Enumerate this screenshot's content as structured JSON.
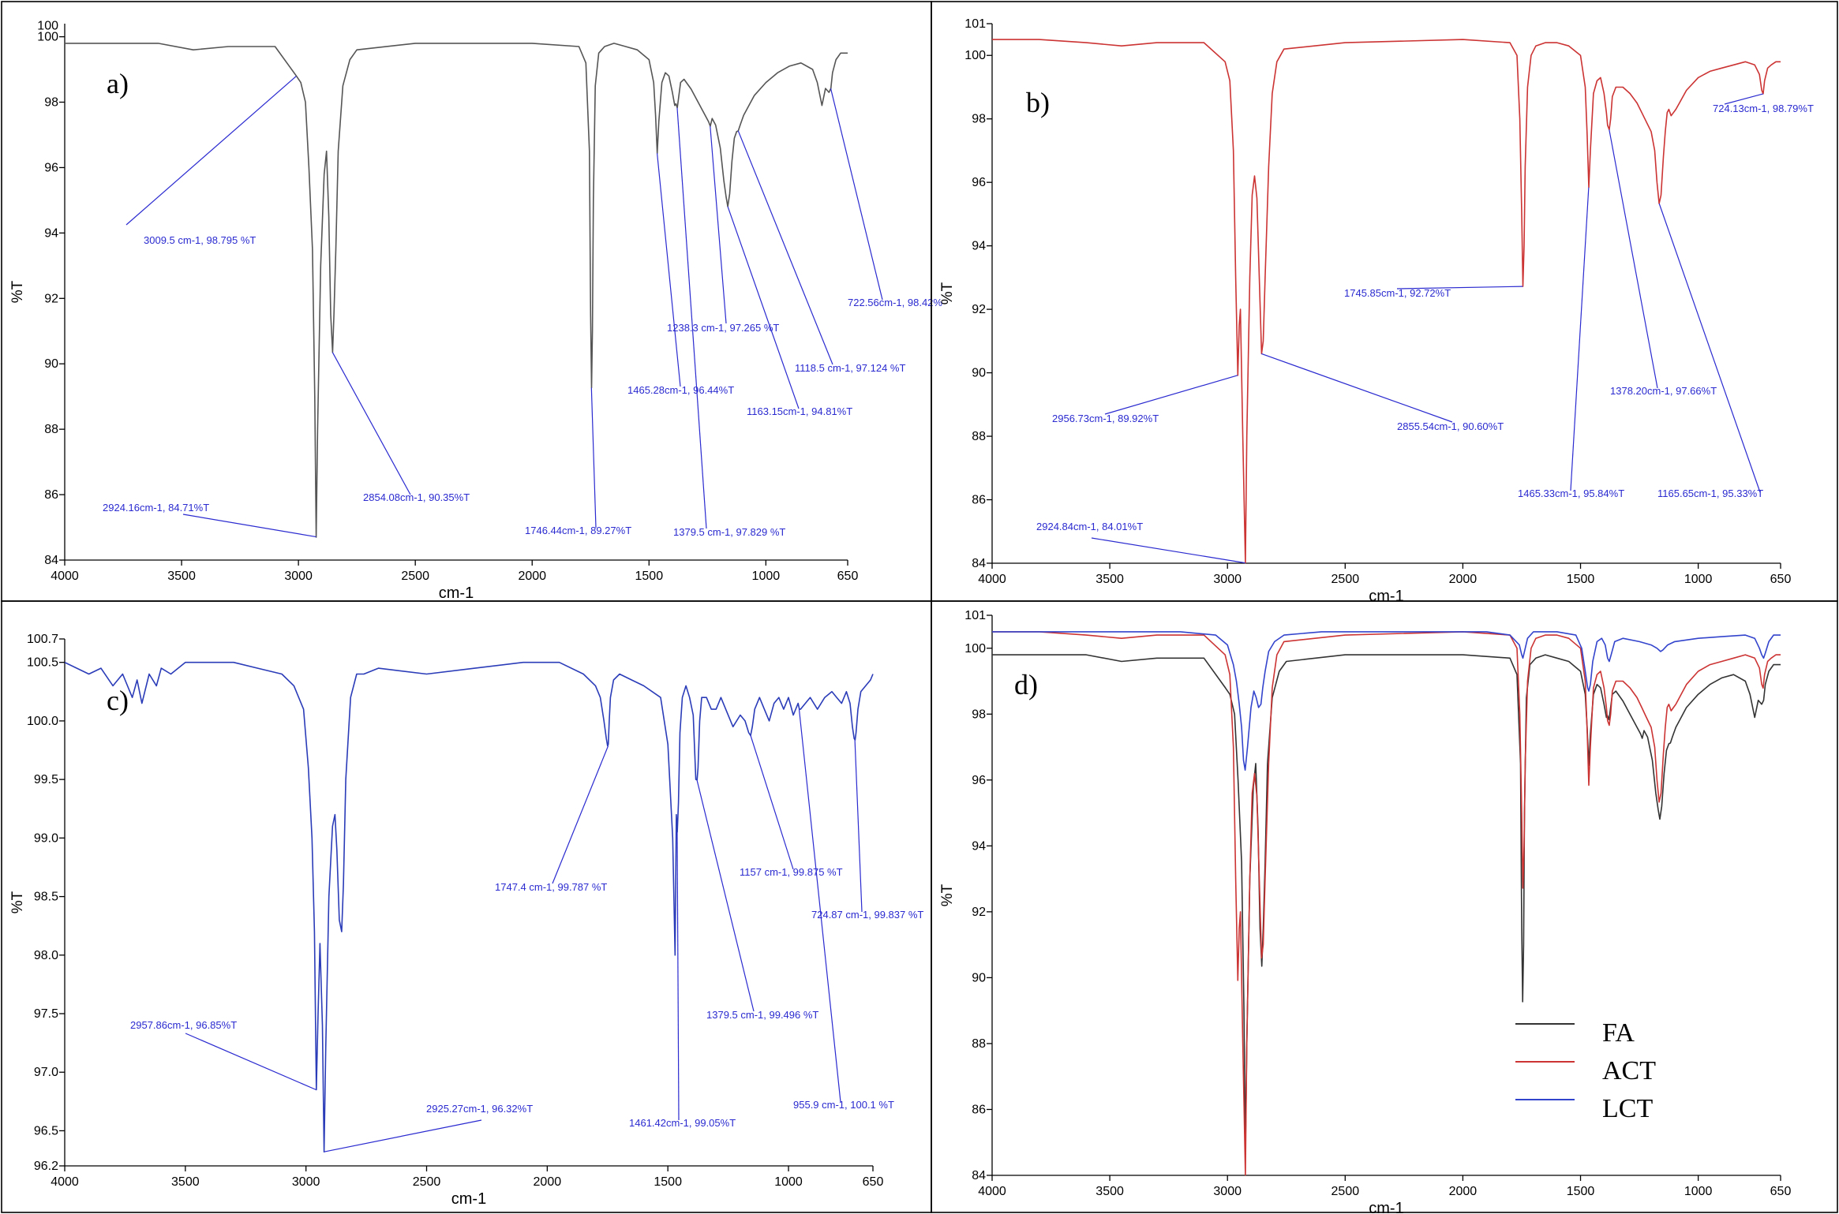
{
  "chart_data": [
    {
      "id": "a",
      "panel_label": "a)",
      "type": "line",
      "xlabel": "cm-1",
      "ylabel": "%T",
      "xlim": [
        4000,
        650
      ],
      "ylim": [
        84,
        100.4
      ],
      "x_ticks": [
        "4000",
        "3500",
        "3000",
        "2500",
        "2000",
        "1500",
        "1000",
        "650"
      ],
      "y_ticks": [
        "84",
        "86",
        "88",
        "90",
        "92",
        "94",
        "96",
        "98",
        "100"
      ],
      "y_ticks_extra": [
        "100"
      ],
      "series": [
        {
          "name": "FA",
          "color": "#555555",
          "x": [
            4000,
            3800,
            3600,
            3450,
            3300,
            3100,
            3009,
            2990,
            2970,
            2955,
            2940,
            2930,
            2924,
            2918,
            2905,
            2890,
            2880,
            2870,
            2862,
            2854,
            2848,
            2840,
            2830,
            2810,
            2780,
            2750,
            2500,
            2000,
            1800,
            1770,
            1755,
            1750,
            1746,
            1742,
            1738,
            1730,
            1715,
            1690,
            1650,
            1600,
            1550,
            1500,
            1480,
            1472,
            1465,
            1458,
            1445,
            1430,
            1415,
            1400,
            1390,
            1385,
            1379,
            1374,
            1365,
            1350,
            1320,
            1290,
            1260,
            1245,
            1238,
            1230,
            1215,
            1195,
            1180,
            1170,
            1163,
            1155,
            1145,
            1135,
            1125,
            1118,
            1110,
            1095,
            1080,
            1050,
            1000,
            950,
            900,
            850,
            800,
            780,
            760,
            745,
            730,
            722,
            715,
            700,
            680,
            660,
            650
          ],
          "y": [
            99.8,
            99.8,
            99.8,
            99.6,
            99.7,
            99.7,
            98.8,
            98.6,
            98.0,
            96.0,
            93.5,
            89.0,
            84.7,
            88.0,
            93.0,
            95.8,
            96.5,
            94.5,
            91.5,
            90.35,
            91.5,
            93.5,
            96.5,
            98.5,
            99.3,
            99.6,
            99.8,
            99.8,
            99.7,
            99.2,
            96.5,
            91.5,
            89.27,
            91.0,
            95.0,
            98.5,
            99.5,
            99.7,
            99.8,
            99.7,
            99.6,
            99.3,
            98.6,
            97.6,
            96.44,
            97.4,
            98.6,
            98.9,
            98.8,
            98.3,
            97.9,
            97.95,
            97.83,
            98.1,
            98.6,
            98.7,
            98.4,
            98.0,
            97.6,
            97.4,
            97.265,
            97.5,
            97.3,
            96.6,
            95.6,
            95.1,
            94.81,
            95.2,
            96.2,
            96.9,
            97.1,
            97.124,
            97.3,
            97.6,
            97.8,
            98.2,
            98.6,
            98.9,
            99.1,
            99.2,
            99.0,
            98.6,
            97.9,
            98.42,
            98.3,
            98.42,
            98.9,
            99.3,
            99.5,
            99.5,
            99.5
          ]
        }
      ],
      "annotations": [
        {
          "text": "3009.5 cm-1, 98.795 %T",
          "x": 3009.5,
          "y": 98.795
        },
        {
          "text": "722.56cm-1, 98.42%",
          "x": 722.56,
          "y": 98.42
        },
        {
          "text": "1238.3 cm-1, 97.265 %T",
          "x": 1238.3,
          "y": 97.265
        },
        {
          "text": "1118.5 cm-1, 97.124 %T",
          "x": 1118.5,
          "y": 97.124
        },
        {
          "text": "1465.28cm-1, 96.44%T",
          "x": 1465.28,
          "y": 96.44
        },
        {
          "text": "1163.15cm-1, 94.81%T",
          "x": 1163.15,
          "y": 94.81
        },
        {
          "text": "2854.08cm-1, 90.35%T",
          "x": 2854.08,
          "y": 90.35
        },
        {
          "text": "2924.16cm-1, 84.71%T",
          "x": 2924.16,
          "y": 84.71
        },
        {
          "text": "1746.44cm-1, 89.27%T",
          "x": 1746.44,
          "y": 89.27
        },
        {
          "text": "1379.5 cm-1, 97.829 %T",
          "x": 1379.5,
          "y": 97.829
        }
      ]
    },
    {
      "id": "b",
      "panel_label": "b)",
      "type": "line",
      "xlabel": "cm-1",
      "ylabel": "%T",
      "xlim": [
        4000,
        650
      ],
      "ylim": [
        84,
        101
      ],
      "x_ticks": [
        "4000",
        "3500",
        "3000",
        "2500",
        "2000",
        "1500",
        "1000",
        "650"
      ],
      "y_ticks": [
        "84",
        "86",
        "88",
        "90",
        "92",
        "94",
        "96",
        "98",
        "100",
        "101"
      ],
      "series": [
        {
          "name": "ACT",
          "color": "#cc3333",
          "x": [
            4000,
            3800,
            3600,
            3450,
            3300,
            3100,
            3010,
            2990,
            2975,
            2965,
            2956,
            2950,
            2945,
            2935,
            2924,
            2918,
            2905,
            2895,
            2885,
            2875,
            2865,
            2855,
            2848,
            2840,
            2825,
            2810,
            2790,
            2760,
            2500,
            2000,
            1800,
            1770,
            1758,
            1750,
            1745,
            1740,
            1735,
            1725,
            1710,
            1690,
            1650,
            1600,
            1550,
            1500,
            1480,
            1472,
            1465,
            1458,
            1445,
            1430,
            1415,
            1400,
            1390,
            1385,
            1378,
            1372,
            1365,
            1350,
            1320,
            1290,
            1260,
            1240,
            1220,
            1200,
            1185,
            1175,
            1166,
            1158,
            1148,
            1140,
            1132,
            1125,
            1115,
            1105,
            1095,
            1080,
            1050,
            1000,
            950,
            900,
            850,
            800,
            760,
            740,
            730,
            724,
            718,
            705,
            690,
            670,
            650
          ],
          "y": [
            100.5,
            100.5,
            100.4,
            100.3,
            100.4,
            100.4,
            99.8,
            99.2,
            97.0,
            93.0,
            89.92,
            91.5,
            92.0,
            88.0,
            84.01,
            88.0,
            93.0,
            95.6,
            96.2,
            95.5,
            93.0,
            90.6,
            91.0,
            93.0,
            96.5,
            98.8,
            99.8,
            100.2,
            100.4,
            100.5,
            100.4,
            100.0,
            98.0,
            95.0,
            92.72,
            94.0,
            96.5,
            99.0,
            100.0,
            100.3,
            100.4,
            100.4,
            100.3,
            100.0,
            99.0,
            97.5,
            95.84,
            97.0,
            98.8,
            99.2,
            99.3,
            98.8,
            98.2,
            97.8,
            97.66,
            98.0,
            98.7,
            99.0,
            99.0,
            98.8,
            98.5,
            98.2,
            97.9,
            97.6,
            97.0,
            96.0,
            95.33,
            95.6,
            96.8,
            97.6,
            98.2,
            98.3,
            98.1,
            98.2,
            98.3,
            98.5,
            98.9,
            99.3,
            99.5,
            99.6,
            99.7,
            99.8,
            99.7,
            99.4,
            98.9,
            98.79,
            99.2,
            99.6,
            99.7,
            99.8,
            99.8
          ]
        }
      ],
      "annotations": [
        {
          "text": "724.13cm-1, 98.79%T",
          "x": 724.13,
          "y": 98.79
        },
        {
          "text": "1745.85cm-1, 92.72%T",
          "x": 1745.85,
          "y": 92.72
        },
        {
          "text": "1378.20cm-1, 97.66%T",
          "x": 1378.2,
          "y": 97.66
        },
        {
          "text": "2956.73cm-1, 89.92%T",
          "x": 2956.73,
          "y": 89.92
        },
        {
          "text": "2855.54cm-1, 90.60%T",
          "x": 2855.54,
          "y": 90.6
        },
        {
          "text": "1465.33cm-1, 95.84%T",
          "x": 1465.33,
          "y": 95.84
        },
        {
          "text": "1165.65cm-1, 95.33%T",
          "x": 1165.65,
          "y": 95.33
        },
        {
          "text": "2924.84cm-1, 84.01%T",
          "x": 2924.84,
          "y": 84.01
        }
      ]
    },
    {
      "id": "c",
      "panel_label": "c)",
      "type": "line",
      "xlabel": "cm-1",
      "ylabel": "%T",
      "xlim": [
        4000,
        650
      ],
      "ylim": [
        96.2,
        100.7
      ],
      "x_ticks": [
        "4000",
        "3500",
        "3000",
        "2500",
        "2000",
        "1500",
        "1000",
        "650"
      ],
      "y_ticks": [
        "96.2",
        "96.5",
        "97.0",
        "97.5",
        "98.0",
        "98.5",
        "99.0",
        "99.5",
        "100.0",
        "100.5",
        "100.7"
      ],
      "series": [
        {
          "name": "LCT",
          "color": "#2b3cb8",
          "x": [
            4000,
            3900,
            3850,
            3800,
            3760,
            3720,
            3700,
            3680,
            3650,
            3620,
            3600,
            3560,
            3500,
            3400,
            3300,
            3200,
            3100,
            3050,
            3010,
            2990,
            2975,
            2965,
            2957,
            2950,
            2942,
            2932,
            2925,
            2918,
            2905,
            2890,
            2880,
            2872,
            2862,
            2852,
            2845,
            2835,
            2815,
            2790,
            2760,
            2700,
            2500,
            2300,
            2100,
            1950,
            1850,
            1800,
            1780,
            1765,
            1755,
            1750,
            1747,
            1743,
            1738,
            1725,
            1700,
            1650,
            1600,
            1530,
            1500,
            1480,
            1470,
            1465,
            1461,
            1456,
            1450,
            1440,
            1425,
            1410,
            1395,
            1388,
            1384,
            1379,
            1375,
            1368,
            1360,
            1340,
            1320,
            1300,
            1280,
            1260,
            1230,
            1200,
            1180,
            1165,
            1157,
            1150,
            1140,
            1120,
            1100,
            1080,
            1060,
            1040,
            1020,
            1000,
            980,
            960,
            955,
            950,
            930,
            910,
            880,
            850,
            820,
            800,
            780,
            760,
            745,
            735,
            728,
            724,
            720,
            712,
            700,
            680,
            660,
            650
          ],
          "y": [
            100.5,
            100.4,
            100.45,
            100.3,
            100.4,
            100.2,
            100.35,
            100.15,
            100.4,
            100.3,
            100.45,
            100.4,
            100.5,
            100.5,
            100.5,
            100.45,
            100.4,
            100.3,
            100.1,
            99.6,
            99.0,
            98.2,
            96.85,
            97.5,
            98.1,
            97.4,
            96.32,
            97.2,
            98.5,
            99.1,
            99.2,
            98.9,
            98.3,
            98.2,
            98.6,
            99.5,
            100.2,
            100.4,
            100.4,
            100.45,
            100.4,
            100.45,
            100.5,
            100.5,
            100.4,
            100.3,
            100.2,
            100.0,
            99.85,
            99.787,
            99.8,
            100.0,
            100.2,
            100.35,
            100.4,
            100.35,
            100.3,
            100.2,
            99.8,
            99.0,
            98.0,
            99.2,
            99.05,
            99.3,
            99.9,
            100.2,
            100.3,
            100.2,
            100.05,
            99.7,
            99.5,
            99.496,
            99.6,
            100.0,
            100.2,
            100.2,
            100.1,
            100.1,
            100.2,
            100.1,
            99.95,
            100.05,
            100.0,
            99.9,
            99.875,
            99.95,
            100.1,
            100.2,
            100.1,
            100.0,
            100.15,
            100.2,
            100.1,
            100.2,
            100.05,
            100.15,
            100.1,
            100.1,
            100.15,
            100.2,
            100.1,
            100.2,
            100.25,
            100.2,
            100.15,
            100.25,
            100.15,
            99.95,
            99.85,
            99.837,
            99.9,
            100.1,
            100.25,
            100.3,
            100.35,
            100.4
          ]
        }
      ],
      "annotations": [
        {
          "text": "1747.4 cm-1, 99.787 %T",
          "x": 1747.4,
          "y": 99.787
        },
        {
          "text": "1157 cm-1, 99.875 %T",
          "x": 1157,
          "y": 99.875
        },
        {
          "text": "724.87 cm-1, 99.837 %T",
          "x": 724.87,
          "y": 99.837
        },
        {
          "text": "1379.5 cm-1, 99.496 %T",
          "x": 1379.5,
          "y": 99.496
        },
        {
          "text": "2957.86cm-1, 96.85%T",
          "x": 2957.86,
          "y": 96.85
        },
        {
          "text": "2925.27cm-1, 96.32%T",
          "x": 2925.27,
          "y": 96.32
        },
        {
          "text": "1461.42cm-1, 99.05%T",
          "x": 1461.42,
          "y": 99.05
        },
        {
          "text": "955.9 cm-1, 100.1 %T",
          "x": 955.9,
          "y": 100.1
        }
      ]
    },
    {
      "id": "d",
      "panel_label": "d)",
      "type": "line",
      "xlabel": "cm-1",
      "ylabel": "%T",
      "xlim": [
        4000,
        650
      ],
      "ylim": [
        84,
        101
      ],
      "x_ticks": [
        "4000",
        "3500",
        "3000",
        "2500",
        "2000",
        "1500",
        "1000",
        "650"
      ],
      "y_ticks": [
        "84",
        "86",
        "88",
        "90",
        "92",
        "94",
        "96",
        "98",
        "100",
        "101"
      ],
      "legend": [
        "FA",
        "ACT",
        "LCT"
      ],
      "series": [
        {
          "name": "FA",
          "color": "#333333",
          "ref": "a"
        },
        {
          "name": "ACT",
          "color": "#cc3333",
          "ref": "b"
        },
        {
          "name": "LCT",
          "color": "#3344cc",
          "ref": "c_scaled",
          "x": [
            4000,
            3800,
            3600,
            3400,
            3200,
            3050,
            3000,
            2975,
            2962,
            2955,
            2950,
            2940,
            2932,
            2925,
            2915,
            2900,
            2888,
            2878,
            2868,
            2858,
            2850,
            2840,
            2825,
            2800,
            2760,
            2600,
            2200,
            1900,
            1800,
            1760,
            1750,
            1745,
            1738,
            1725,
            1700,
            1600,
            1520,
            1495,
            1480,
            1470,
            1465,
            1458,
            1448,
            1430,
            1410,
            1395,
            1385,
            1378,
            1370,
            1355,
            1320,
            1250,
            1200,
            1175,
            1160,
            1150,
            1130,
            1100,
            1000,
            900,
            800,
            760,
            740,
            730,
            722,
            715,
            700,
            680,
            650
          ],
          "y": [
            100.5,
            100.5,
            100.5,
            100.5,
            100.5,
            100.4,
            100.1,
            99.5,
            99.0,
            98.6,
            98.3,
            97.6,
            96.6,
            96.3,
            97.0,
            98.2,
            98.7,
            98.5,
            98.2,
            98.3,
            98.8,
            99.3,
            99.9,
            100.2,
            100.4,
            100.5,
            100.5,
            100.5,
            100.4,
            100.1,
            99.8,
            99.7,
            99.9,
            100.3,
            100.5,
            100.5,
            100.4,
            100.0,
            99.3,
            98.8,
            98.7,
            98.9,
            99.6,
            100.2,
            100.3,
            100.1,
            99.7,
            99.6,
            99.8,
            100.2,
            100.3,
            100.2,
            100.1,
            100.0,
            99.9,
            99.95,
            100.1,
            100.2,
            100.3,
            100.35,
            100.4,
            100.3,
            100.0,
            99.8,
            99.7,
            99.85,
            100.2,
            100.4,
            100.4
          ]
        }
      ]
    }
  ]
}
